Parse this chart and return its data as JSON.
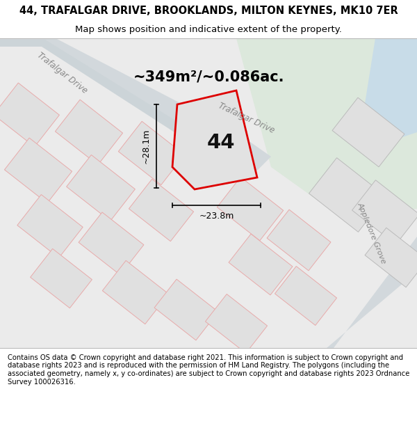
{
  "title_line1": "44, TRAFALGAR DRIVE, BROOKLANDS, MILTON KEYNES, MK10 7ER",
  "title_line2": "Map shows position and indicative extent of the property.",
  "area_text": "~349m²/~0.086ac.",
  "plot_number": "44",
  "dim_width": "~23.8m",
  "dim_height": "~28.1m",
  "footer_text": "Contains OS data © Crown copyright and database right 2021. This information is subject to Crown copyright and database rights 2023 and is reproduced with the permission of HM Land Registry. The polygons (including the associated geometry, namely x, y co-ordinates) are subject to Crown copyright and database rights 2023 Ordnance Survey 100026316.",
  "bg_color": "#ebebeb",
  "map_bg_light": "#e8ebe8",
  "green_area": "#dde8dd",
  "road_color": "#d0d8dc",
  "road_edge": "#c0ccd0",
  "plot_fill": "#e2e2e2",
  "plot_outline": "#dd0000",
  "neighbor_fill": "#e0e0e0",
  "neighbor_outline": "#e8aaaa",
  "water_color": "#c8dce8",
  "street_color": "#999999",
  "title_fontsize": 10.5,
  "subtitle_fontsize": 9.5,
  "footer_fontsize": 7.2,
  "area_fontsize": 15
}
